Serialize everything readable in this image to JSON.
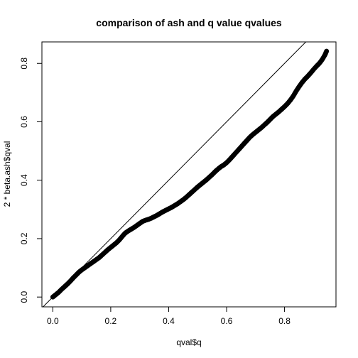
{
  "chart_data": {
    "type": "scatter",
    "title": "comparison of ash and q value qvalues",
    "xlabel": "qval$q",
    "ylabel": "2 * beta.ash$qval",
    "xlim": [
      -0.0376,
      0.9776
    ],
    "ylim": [
      -0.0336,
      0.8736
    ],
    "x_ticks": [
      0,
      0.2,
      0.4,
      0.6,
      0.8
    ],
    "y_ticks": [
      0,
      0.2,
      0.4,
      0.6,
      0.8
    ],
    "x_tick_labels": [
      "0.0",
      "0.2",
      "0.4",
      "0.6",
      "0.8"
    ],
    "y_tick_labels": [
      "0.0",
      "0.2",
      "0.4",
      "0.6",
      "0.8"
    ],
    "grid": false,
    "reference_line": {
      "intercept": 0,
      "slope": 1
    },
    "point_color": "#000000",
    "series": [
      {
        "x": [
          0.0,
          0.01,
          0.02,
          0.03,
          0.04,
          0.05,
          0.06,
          0.07,
          0.08,
          0.09,
          0.1,
          0.11,
          0.12,
          0.13,
          0.14,
          0.15,
          0.16,
          0.17,
          0.18,
          0.19,
          0.2,
          0.21,
          0.22,
          0.23,
          0.24,
          0.25,
          0.26,
          0.27,
          0.28,
          0.29,
          0.3,
          0.31,
          0.32,
          0.33,
          0.34,
          0.35,
          0.36,
          0.37,
          0.38,
          0.39,
          0.4,
          0.41,
          0.42,
          0.43,
          0.44,
          0.45,
          0.46,
          0.47,
          0.48,
          0.49,
          0.5,
          0.51,
          0.52,
          0.53,
          0.54,
          0.55,
          0.56,
          0.57,
          0.58,
          0.59,
          0.6,
          0.61,
          0.62,
          0.63,
          0.64,
          0.65,
          0.66,
          0.67,
          0.68,
          0.69,
          0.7,
          0.71,
          0.72,
          0.73,
          0.74,
          0.75,
          0.76,
          0.77,
          0.78,
          0.79,
          0.8,
          0.81,
          0.82,
          0.83,
          0.84,
          0.85,
          0.86,
          0.87,
          0.88,
          0.89,
          0.9,
          0.91,
          0.92,
          0.93,
          0.94,
          0.945
        ],
        "y": [
          0.0,
          0.008,
          0.016,
          0.026,
          0.035,
          0.044,
          0.054,
          0.065,
          0.075,
          0.085,
          0.093,
          0.1,
          0.107,
          0.114,
          0.121,
          0.128,
          0.135,
          0.144,
          0.153,
          0.162,
          0.17,
          0.178,
          0.186,
          0.196,
          0.208,
          0.219,
          0.226,
          0.232,
          0.238,
          0.245,
          0.252,
          0.259,
          0.263,
          0.266,
          0.27,
          0.275,
          0.28,
          0.286,
          0.292,
          0.297,
          0.302,
          0.307,
          0.313,
          0.319,
          0.326,
          0.333,
          0.341,
          0.35,
          0.359,
          0.368,
          0.377,
          0.385,
          0.393,
          0.401,
          0.41,
          0.419,
          0.429,
          0.438,
          0.446,
          0.452,
          0.46,
          0.47,
          0.481,
          0.492,
          0.503,
          0.514,
          0.525,
          0.536,
          0.547,
          0.556,
          0.564,
          0.572,
          0.58,
          0.589,
          0.598,
          0.608,
          0.618,
          0.626,
          0.634,
          0.643,
          0.652,
          0.662,
          0.674,
          0.688,
          0.705,
          0.72,
          0.734,
          0.746,
          0.756,
          0.767,
          0.779,
          0.79,
          0.8,
          0.813,
          0.83,
          0.842
        ]
      }
    ]
  }
}
